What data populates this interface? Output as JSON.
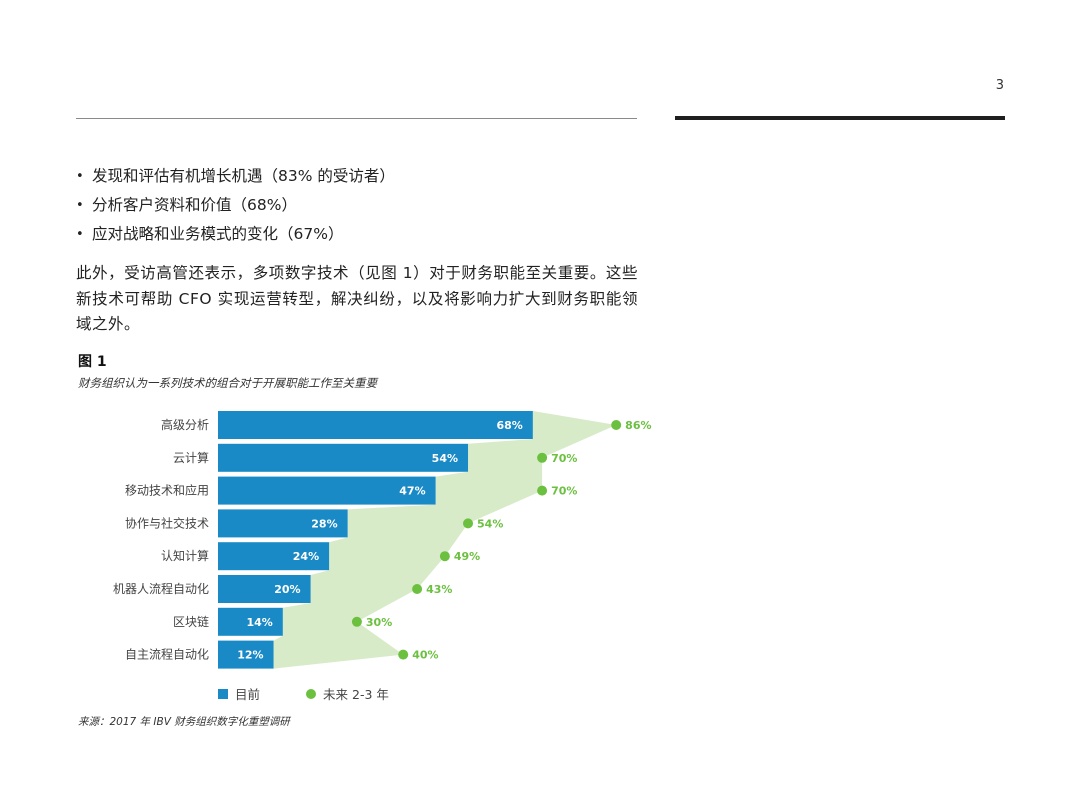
{
  "page_number": "3",
  "bullets": [
    "发现和评估有机增长机遇（83% 的受访者）",
    "分析客户资料和价值（68%）",
    "应对战略和业务模式的变化（67%）"
  ],
  "paragraph": "此外，受访高管还表示，多项数字技术（见图 1）对于财务职能至关重要。这些新技术可帮助 CFO 实现运营转型，解决纠纷，以及将影响力扩大到财务职能领域之外。",
  "figure": {
    "label": "图 1",
    "caption": "财务组织认为一系列技术的组合对于开展职能工作至关重要"
  },
  "colors": {
    "current": "#1a8ac6",
    "future": "#6cc040",
    "area": "#d8ebc8"
  },
  "chart_data": {
    "type": "bar",
    "orientation": "horizontal",
    "categories": [
      "高级分析",
      "云计算",
      "移动技术和应用",
      "协作与社交技术",
      "认知计算",
      "机器人流程自动化",
      "区块链",
      "自主流程自动化"
    ],
    "series": [
      {
        "name": "目前",
        "values": [
          68,
          54,
          47,
          28,
          24,
          20,
          14,
          12
        ],
        "labels": [
          "68%",
          "54%",
          "47%",
          "28%",
          "24%",
          "20%",
          "14%",
          "12%"
        ]
      },
      {
        "name": "未来 2-3 年",
        "values": [
          86,
          70,
          70,
          54,
          49,
          43,
          30,
          40
        ],
        "labels": [
          "86%",
          "70%",
          "70%",
          "54%",
          "49%",
          "43%",
          "30%",
          "40%"
        ]
      }
    ],
    "xlim": [
      0,
      100
    ],
    "grid": false,
    "legend": {
      "placement": "bottom",
      "current": "目前",
      "future": "未来 2-3 年"
    }
  },
  "source": "来源：2017 年 IBV 财务组织数字化重塑调研"
}
